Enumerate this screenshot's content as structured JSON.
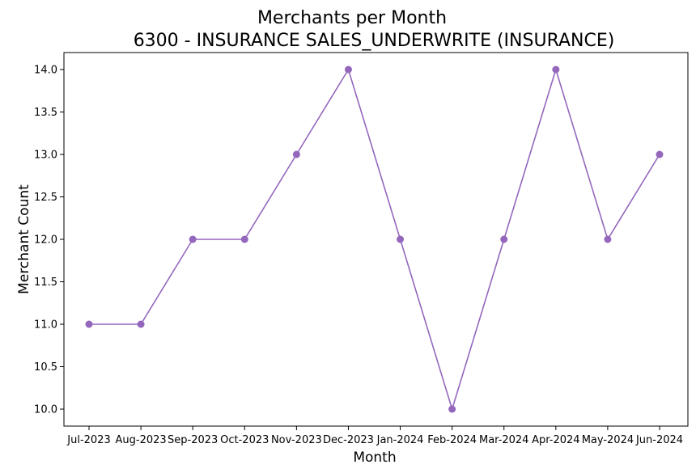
{
  "chart_data": {
    "type": "line",
    "title_line1": "Merchants per Month",
    "title_line2": "6300 - INSURANCE SALES_UNDERWRITE (INSURANCE)",
    "xlabel": "Month",
    "ylabel": "Merchant Count",
    "categories": [
      "Jul-2023",
      "Aug-2023",
      "Sep-2023",
      "Oct-2023",
      "Nov-2023",
      "Dec-2023",
      "Jan-2024",
      "Feb-2024",
      "Mar-2024",
      "Apr-2024",
      "May-2024",
      "Jun-2024"
    ],
    "values": [
      11,
      11,
      12,
      12,
      13,
      14,
      12,
      10,
      12,
      14,
      12,
      13
    ],
    "ylim": [
      9.8,
      14.2
    ],
    "yticks": [
      "10.0",
      "10.5",
      "11.0",
      "11.5",
      "12.0",
      "12.5",
      "13.0",
      "13.5",
      "14.0"
    ],
    "series_color": "#9467bd",
    "grid": false
  }
}
